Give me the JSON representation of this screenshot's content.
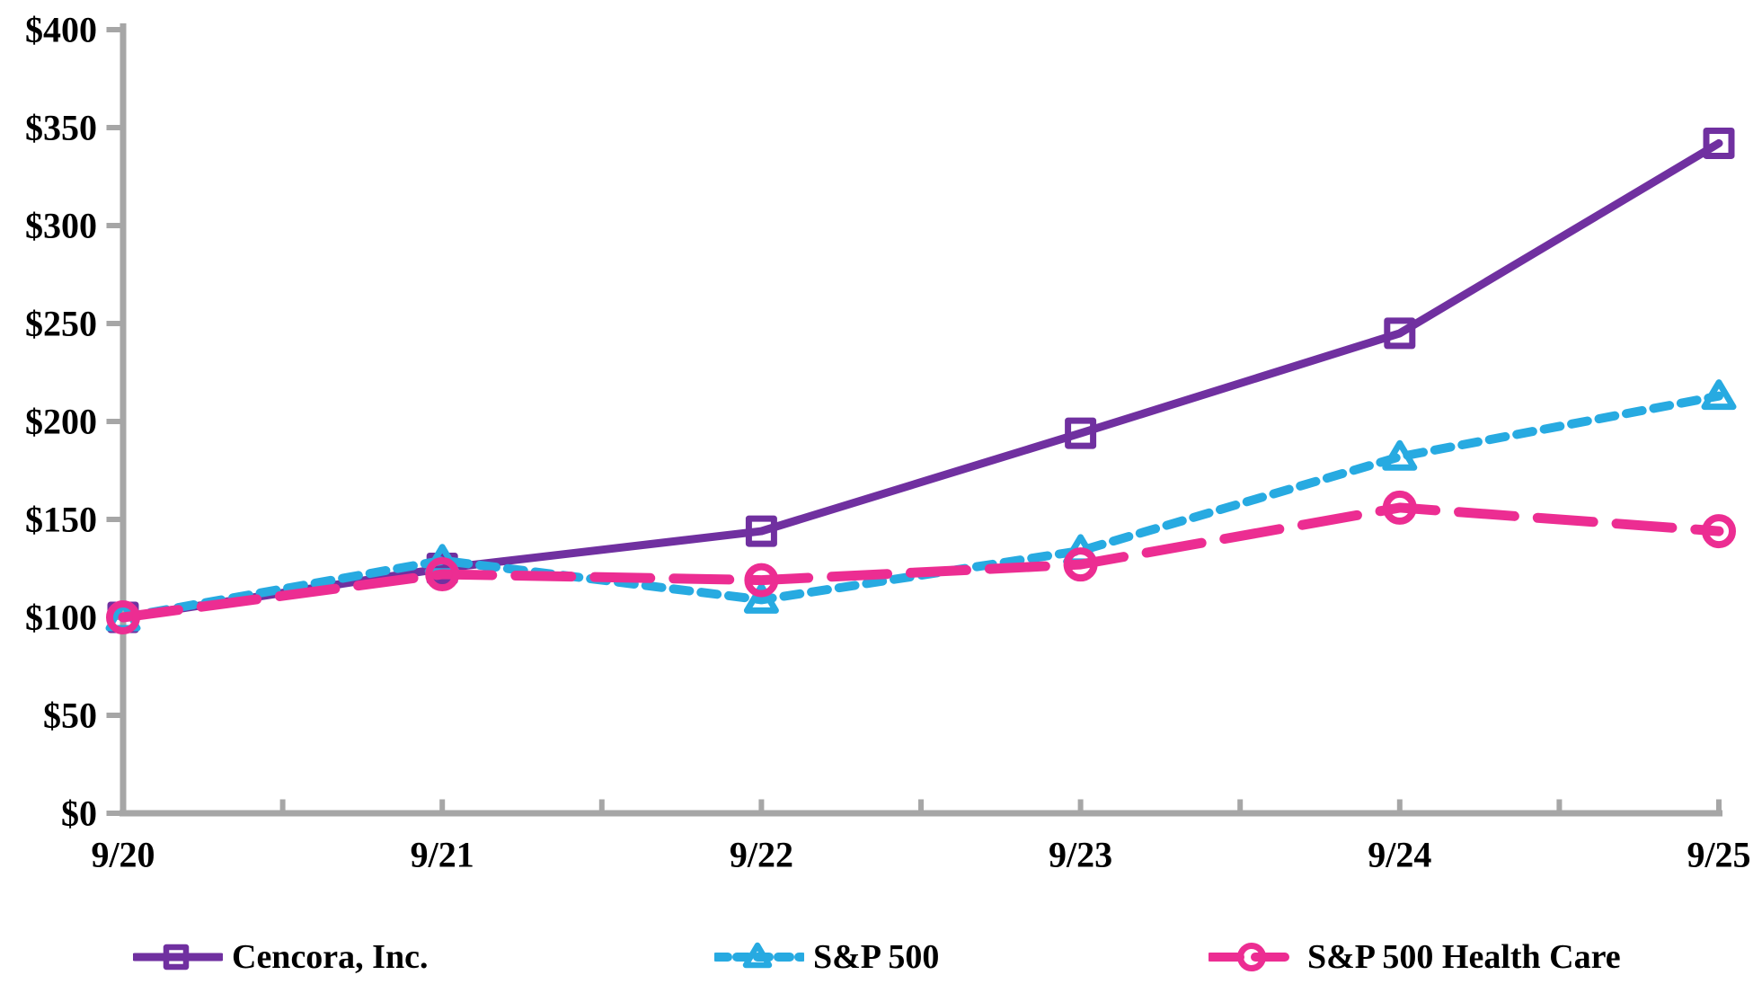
{
  "chart_data": {
    "type": "line",
    "title": "",
    "x_categories": [
      "9/20",
      "9/21",
      "9/22",
      "9/23",
      "9/24",
      "9/25"
    ],
    "y_axis": {
      "min": 0,
      "max": 400,
      "step": 50,
      "tick_prefix": "$",
      "tick_labels": [
        "$0",
        "$50",
        "$100",
        "$150",
        "$200",
        "$250",
        "$300",
        "$350",
        "$400"
      ]
    },
    "series": [
      {
        "name": "Cencora, Inc.",
        "color": "#7030A0",
        "line_style": "solid",
        "marker": "square",
        "values": [
          100,
          125,
          144,
          194,
          245,
          342
        ]
      },
      {
        "name": "S&P 500",
        "color": "#27AAE1",
        "line_style": "short-dash",
        "marker": "triangle",
        "values": [
          100,
          129,
          109,
          134,
          182,
          213
        ]
      },
      {
        "name": "S&P 500 Health Care",
        "color": "#EC2D92",
        "line_style": "long-dash",
        "marker": "circle",
        "values": [
          100,
          122,
          119,
          127,
          156,
          144
        ]
      }
    ],
    "legend_position": "bottom",
    "grid": false,
    "axis_color": "#A6A6A6",
    "background": "#FFFFFF",
    "x_minor_ticks_per_interval": 1
  }
}
